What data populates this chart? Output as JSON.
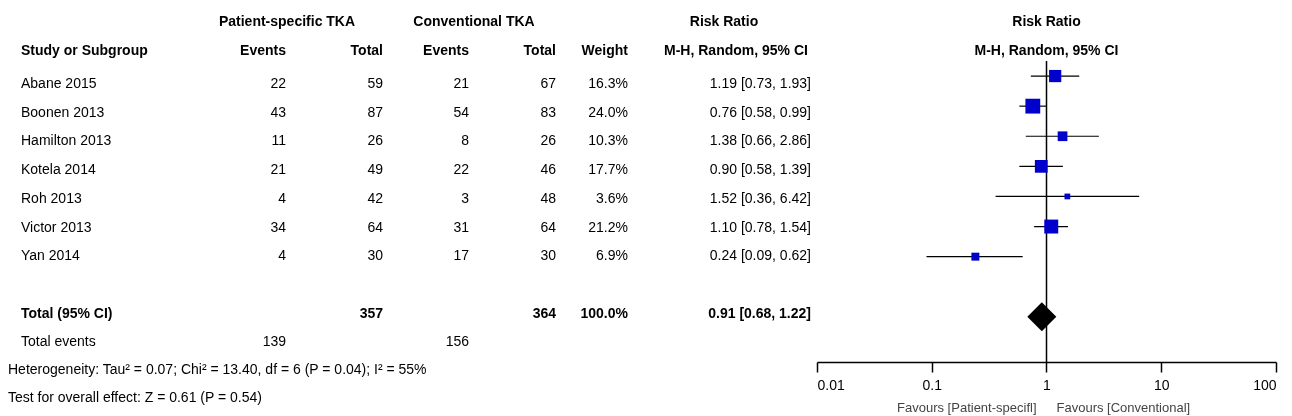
{
  "chart_data": [
    {
      "type": "other",
      "ylabel": "Study or Subgroup",
      "categories": [
        "Abane 2015",
        "Boonen 2013",
        "Hamilton 2013",
        "Kotela 2014",
        "Roh 2013",
        "Victor 2013",
        "Yan 2014",
        null,
        "Total (95% CI)",
        "Total events"
      ],
      "data_labels": true,
      "series": [
        {
          "name": "Events",
          "values": [
            22,
            43,
            11,
            21,
            4,
            34,
            4,
            null,
            null,
            139
          ]
        },
        {
          "name": "Total",
          "values": [
            59,
            87,
            26,
            49,
            42,
            64,
            30,
            null,
            357,
            null
          ]
        },
        {
          "name": "Events",
          "values": [
            21,
            54,
            8,
            22,
            3,
            31,
            17,
            null,
            null,
            156
          ]
        },
        {
          "name": "Total",
          "values": [
            67,
            83,
            26,
            46,
            48,
            64,
            30,
            null,
            364,
            null
          ]
        },
        {
          "name": "Weight",
          "values": [
            16.3,
            24.0,
            10.3,
            17.7,
            3.6,
            21.2,
            6.9,
            null,
            100.0,
            null
          ],
          "value_labels": [
            "16.3%",
            "24.0%",
            "10.3%",
            "17.7%",
            "3.6%",
            "21.2%",
            "6.9%",
            null,
            "100.0%",
            null
          ]
        },
        {
          "values": [
            1.19,
            0.76,
            1.38,
            0.9,
            1.52,
            1.1,
            0.24,
            null,
            0.91,
            null
          ],
          "value_labels": [
            "1.19 [0.73, 1.93]",
            "0.76 [0.58, 0.99]",
            "1.38 [0.66, 2.86]",
            "0.90 [0.58, 1.39]",
            "1.52 [0.36, 6.42]",
            "1.10 [0.78, 1.54]",
            "0.24 [0.09, 0.62]",
            null,
            "0.91 [0.68, 1.22]",
            null
          ]
        }
      ],
      "annotations": [
        "Patient-specific TKA",
        "Conventional TKA",
        "Risk Ratio",
        "M-H, Random, 95% CI",
        "Heterogeneity: Tau² = 0.07; Chi² = 13.40, df = 6 (P = 0.04); I² = 55%",
        "Test for overall effect: Z = 0.61 (P = 0.54)"
      ]
    },
    {
      "type": "scatter",
      "orientation": "horizontal",
      "title": "Risk Ratio",
      "subtitle": "M-H, Random, 95% CI",
      "categories": [
        null,
        null,
        null,
        null,
        null,
        null,
        null,
        null,
        null,
        null
      ],
      "tick_labels": "x",
      "log": "x",
      "xlim": [
        0.01,
        100
      ],
      "xticks": [
        0.01,
        0.1,
        1,
        10,
        100
      ],
      "ref_lines": [
        {
          "axis": "x",
          "value": 1,
          "color": "#000000"
        }
      ],
      "annotations": [
        "Favours [Patient-specifl]",
        "Favours [Conventional]"
      ],
      "series": [
        {
          "type": "bubble",
          "marker": "square",
          "color": "#0000cc",
          "values": [
            1.19,
            0.76,
            1.38,
            0.9,
            1.52,
            1.1,
            0.24,
            null,
            null,
            null
          ],
          "errors": [
            [
              0.73,
              1.93
            ],
            [
              0.58,
              0.99
            ],
            [
              0.66,
              2.86
            ],
            [
              0.58,
              1.39
            ],
            [
              0.36,
              6.42
            ],
            [
              0.78,
              1.54
            ],
            [
              0.09,
              0.62
            ],
            null,
            null,
            null
          ],
          "sizes": [
            0.679,
            1,
            0.429,
            0.738,
            0.15,
            0.883,
            0.288,
            null,
            null,
            null
          ]
        },
        {
          "type": "scatter",
          "marker": "diamond",
          "color": "#000000",
          "values": [
            null,
            null,
            null,
            null,
            null,
            null,
            null,
            null,
            0.91,
            null
          ]
        }
      ]
    }
  ]
}
